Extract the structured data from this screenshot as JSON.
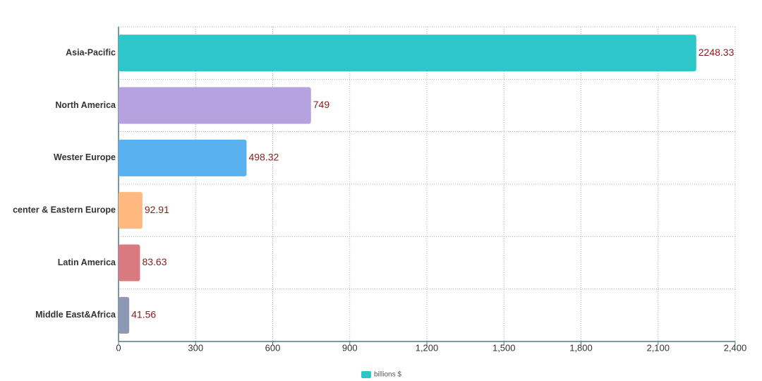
{
  "chart_data": {
    "type": "hbar",
    "categories": [
      "Asia-Pacific",
      "North America",
      "Wester Europe",
      "center & Eastern Europe",
      "Latin America",
      "Middle East&Africa"
    ],
    "series": [
      {
        "name": "billions $",
        "color": "#2ec7c9",
        "values": [
          2248.33,
          749,
          498.32,
          92.91,
          83.63,
          41.56
        ]
      }
    ],
    "bar_colors": [
      "#2ec7c9",
      "#b6a2de",
      "#5ab1ef",
      "#ffb980",
      "#d87a80",
      "#8d98b3"
    ],
    "xlim": [
      0,
      2400
    ],
    "xticks": [
      0,
      300,
      600,
      900,
      {
        "value": 1200,
        "label": "1,200"
      },
      {
        "value": 1500,
        "label": "1,500"
      },
      {
        "value": 1800,
        "label": "1,800"
      },
      {
        "value": 2100,
        "label": "2,100"
      },
      {
        "value": 2400,
        "label": "2,400"
      }
    ],
    "grid": true
  }
}
